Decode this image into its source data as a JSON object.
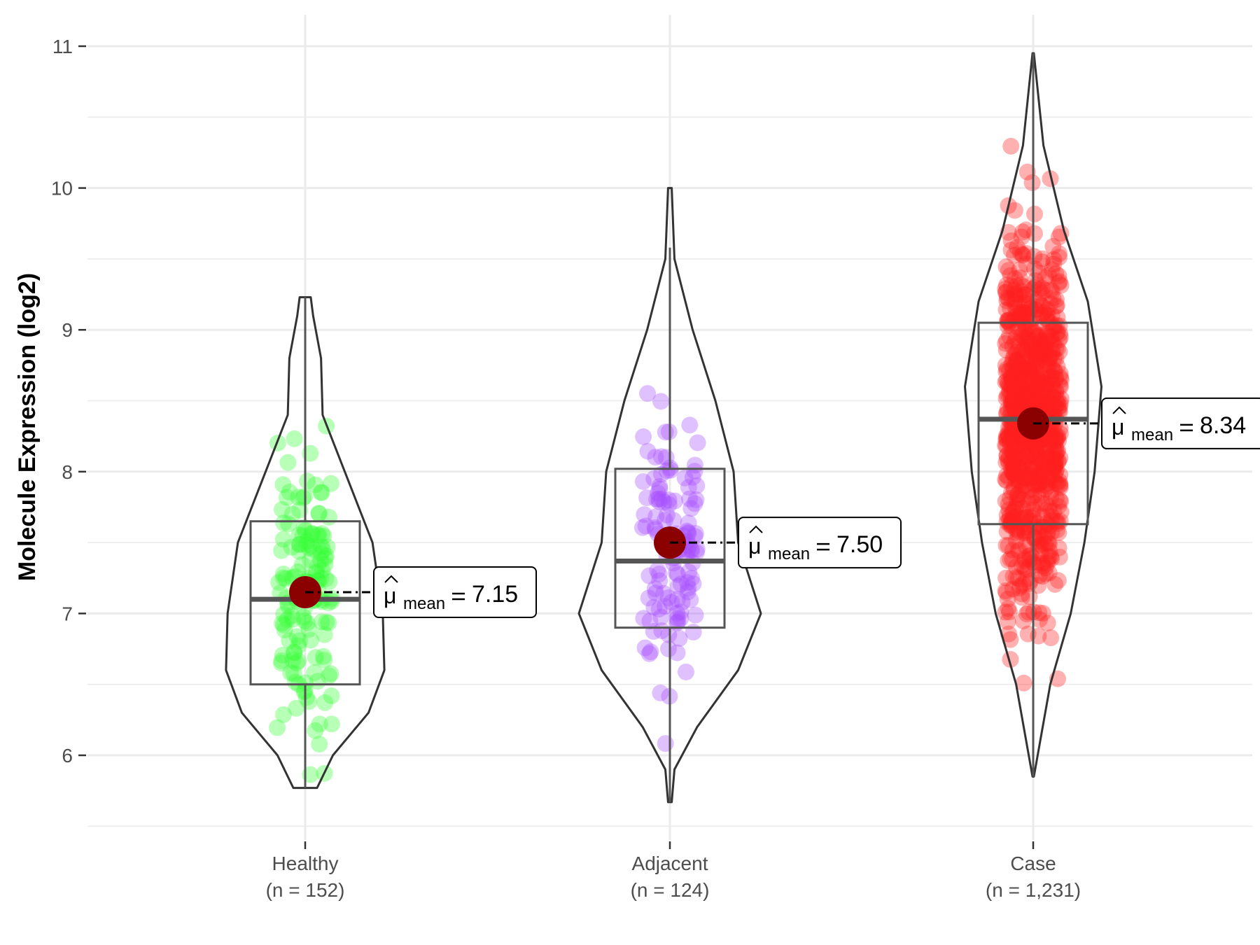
{
  "chart_data": {
    "type": "violin-box-jitter",
    "ylabel": "Molecule Expression (log2)",
    "ylim": [
      5.5,
      11.2
    ],
    "yticks": [
      "6",
      "7",
      "8",
      "9",
      "10",
      "11"
    ],
    "grid": true,
    "groups": [
      {
        "name": "Healthy",
        "n_label": "(n = 152)",
        "n": 152,
        "color": "#33ff33",
        "mean": 7.15,
        "mean_label": "7.15",
        "box": {
          "whisker_low": 5.77,
          "q1": 6.5,
          "median": 7.1,
          "q3": 7.65,
          "whisker_high": 9.23
        },
        "violin_scale": 0.87,
        "violin": [
          [
            5.77,
            0.15
          ],
          [
            6.0,
            0.35
          ],
          [
            6.3,
            0.8
          ],
          [
            6.6,
            1.0
          ],
          [
            7.0,
            0.98
          ],
          [
            7.5,
            0.85
          ],
          [
            8.0,
            0.5
          ],
          [
            8.4,
            0.22
          ],
          [
            8.8,
            0.2
          ],
          [
            9.1,
            0.1
          ],
          [
            9.23,
            0.07
          ]
        ]
      },
      {
        "name": "Adjacent",
        "n_label": "(n = 124)",
        "n": 124,
        "color": "#a64dff",
        "mean": 7.5,
        "mean_label": "7.50",
        "box": {
          "whisker_low": 5.67,
          "q1": 6.9,
          "median": 7.37,
          "q3": 8.02,
          "whisker_high": 9.58
        },
        "violin_scale": 1.0,
        "violin": [
          [
            5.67,
            0.02
          ],
          [
            5.9,
            0.05
          ],
          [
            6.2,
            0.3
          ],
          [
            6.6,
            0.75
          ],
          [
            7.0,
            1.0
          ],
          [
            7.5,
            0.75
          ],
          [
            8.0,
            0.7
          ],
          [
            8.5,
            0.5
          ],
          [
            9.0,
            0.25
          ],
          [
            9.5,
            0.05
          ],
          [
            10.0,
            0.02
          ]
        ]
      },
      {
        "name": "Case",
        "n_label": "(n = 1,231)",
        "n": 1231,
        "color": "#ff2020",
        "mean": 8.34,
        "mean_label": "8.34",
        "box": {
          "whisker_low": 5.85,
          "q1": 7.63,
          "median": 8.37,
          "q3": 9.05,
          "whisker_high": 10.95
        },
        "violin_scale": 0.75,
        "violin": [
          [
            5.85,
            0.01
          ],
          [
            6.5,
            0.25
          ],
          [
            7.0,
            0.55
          ],
          [
            7.5,
            0.75
          ],
          [
            8.0,
            0.9
          ],
          [
            8.6,
            1.0
          ],
          [
            9.2,
            0.8
          ],
          [
            9.7,
            0.45
          ],
          [
            10.3,
            0.15
          ],
          [
            10.95,
            0.01
          ]
        ]
      }
    ],
    "mean_symbol": "μ",
    "mean_subscript": "mean",
    "mean_color": "#8b0000"
  }
}
